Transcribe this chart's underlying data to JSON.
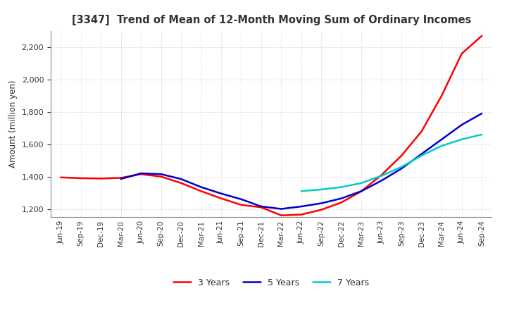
{
  "title": "[3347]  Trend of Mean of 12-Month Moving Sum of Ordinary Incomes",
  "ylabel": "Amount (million yen)",
  "background_color": "#ffffff",
  "grid_color": "#aaaaaa",
  "ylim": [
    1150,
    2300
  ],
  "yticks": [
    1200,
    1400,
    1600,
    1800,
    2000,
    2200
  ],
  "x_labels": [
    "Jun-19",
    "Sep-19",
    "Dec-19",
    "Mar-20",
    "Jun-20",
    "Sep-20",
    "Dec-20",
    "Mar-21",
    "Jun-21",
    "Sep-21",
    "Dec-21",
    "Mar-22",
    "Jun-22",
    "Sep-22",
    "Dec-22",
    "Mar-23",
    "Jun-23",
    "Sep-23",
    "Dec-23",
    "Mar-24",
    "Jun-24",
    "Sep-24"
  ],
  "lines": {
    "3 Years": {
      "color": "#ff0000",
      "data": [
        1395,
        1390,
        1388,
        1392,
        1415,
        1400,
        1360,
        1310,
        1265,
        1225,
        1210,
        1160,
        1165,
        1195,
        1240,
        1310,
        1410,
        1530,
        1680,
        1900,
        2160,
        2270
      ]
    },
    "5 Years": {
      "color": "#0000cc",
      "data": [
        null,
        null,
        null,
        1385,
        1420,
        1415,
        1385,
        1335,
        1295,
        1260,
        1215,
        1200,
        1215,
        1235,
        1265,
        1310,
        1375,
        1450,
        1540,
        1630,
        1720,
        1790
      ]
    },
    "7 Years": {
      "color": "#00cccc",
      "data": [
        null,
        null,
        null,
        null,
        null,
        null,
        null,
        null,
        null,
        null,
        null,
        null,
        1310,
        1320,
        1335,
        1360,
        1405,
        1460,
        1530,
        1590,
        1630,
        1660
      ]
    },
    "10 Years": {
      "color": "#008800",
      "data": [
        null,
        null,
        null,
        null,
        null,
        null,
        null,
        null,
        null,
        null,
        null,
        null,
        null,
        null,
        null,
        null,
        null,
        null,
        null,
        null,
        null,
        null
      ]
    }
  }
}
